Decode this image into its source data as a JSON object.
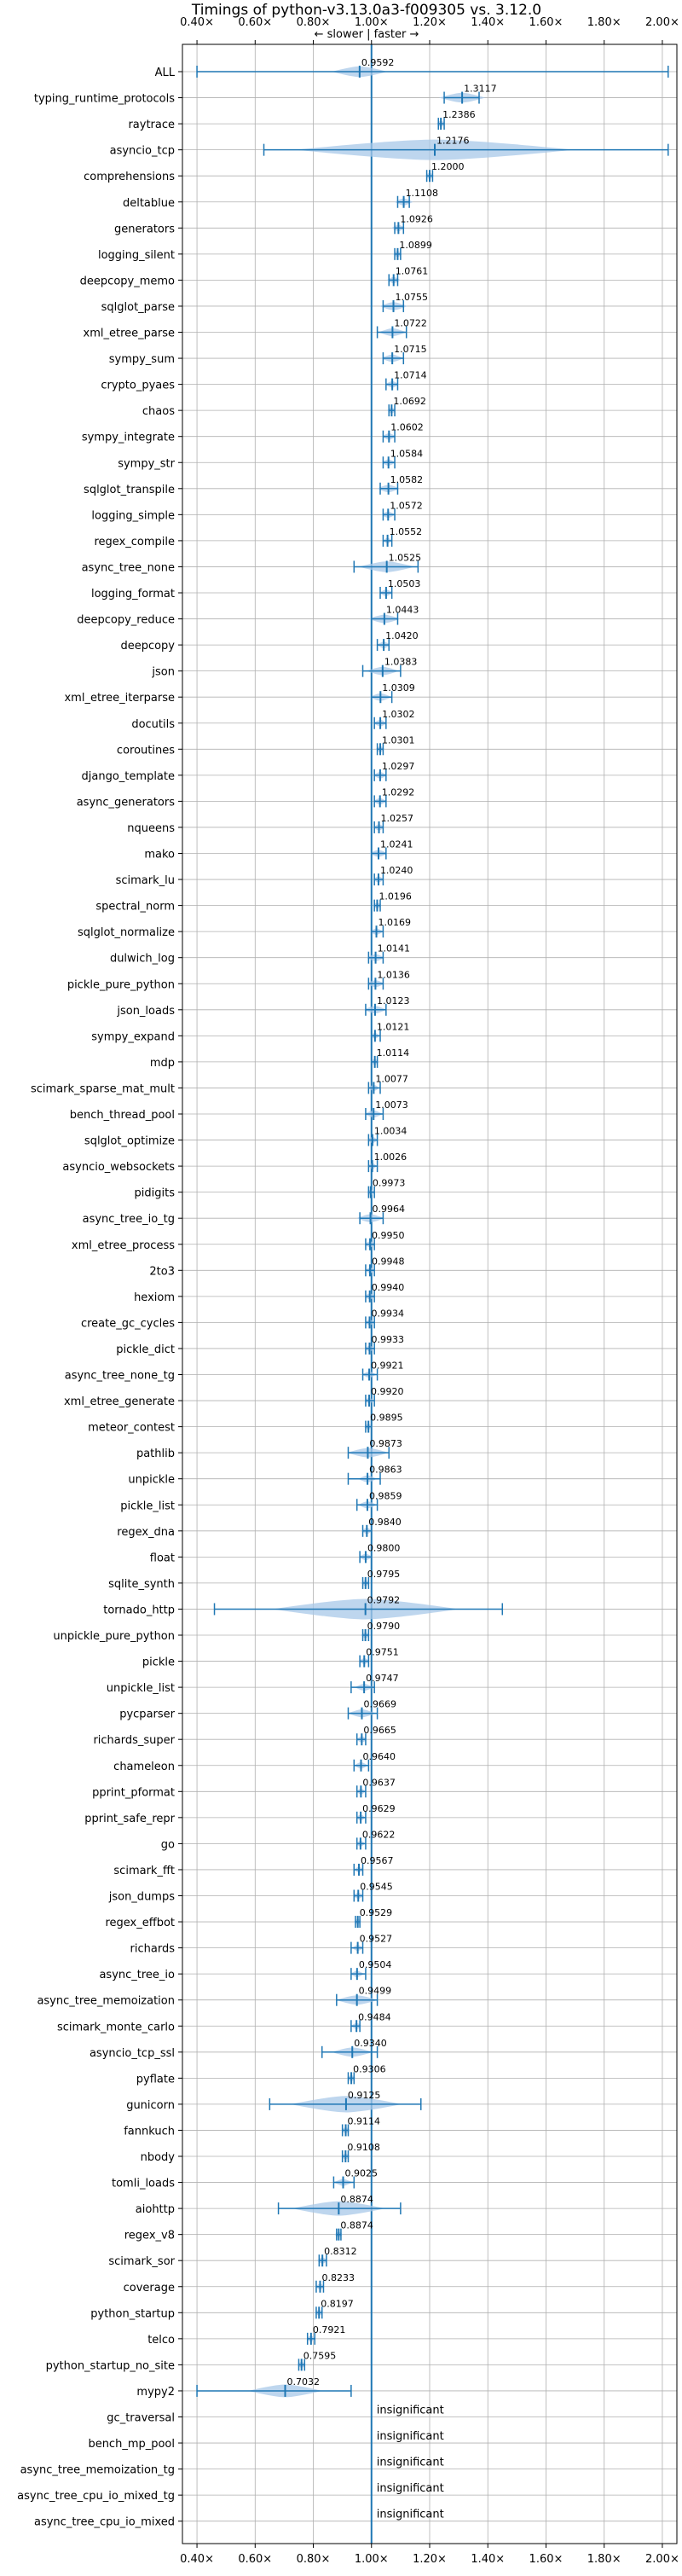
{
  "chart_data": {
    "type": "violin",
    "title": "Timings of python-v3.13.0a3-f009305 vs. 3.12.0",
    "direction_label": "← slower | faster →",
    "x_ticks": [
      "0.40×",
      "0.60×",
      "0.80×",
      "1.00×",
      "1.20×",
      "1.40×",
      "1.60×",
      "1.80×",
      "2.00×"
    ],
    "xlim": [
      0.35,
      2.05
    ],
    "reference_line": 1.0,
    "grid": true,
    "benchmarks": [
      {
        "name": "ALL",
        "value": 0.9592,
        "label": "0.9592",
        "min": 0.4,
        "max": 2.02,
        "spread": 0.06
      },
      {
        "name": "typing_runtime_protocols",
        "value": 1.3117,
        "label": "1.3117",
        "min": 1.25,
        "max": 1.37,
        "spread": 0.05
      },
      {
        "name": "raytrace",
        "value": 1.2386,
        "label": "1.2386",
        "min": 1.23,
        "max": 1.25,
        "spread": 0.01
      },
      {
        "name": "asyncio_tcp",
        "value": 1.2176,
        "label": "1.2176",
        "min": 0.63,
        "max": 2.02,
        "spread": 0.3
      },
      {
        "name": "comprehensions",
        "value": 1.2,
        "label": "1.2000",
        "min": 1.19,
        "max": 1.21,
        "spread": 0.01
      },
      {
        "name": "deltablue",
        "value": 1.1108,
        "label": "1.1108",
        "min": 1.09,
        "max": 1.13,
        "spread": 0.02
      },
      {
        "name": "generators",
        "value": 1.0926,
        "label": "1.0926",
        "min": 1.08,
        "max": 1.11,
        "spread": 0.015
      },
      {
        "name": "logging_silent",
        "value": 1.0899,
        "label": "1.0899",
        "min": 1.08,
        "max": 1.1,
        "spread": 0.01
      },
      {
        "name": "deepcopy_memo",
        "value": 1.0761,
        "label": "1.0761",
        "min": 1.06,
        "max": 1.09,
        "spread": 0.015
      },
      {
        "name": "sqlglot_parse",
        "value": 1.0755,
        "label": "1.0755",
        "min": 1.04,
        "max": 1.11,
        "spread": 0.03
      },
      {
        "name": "xml_etree_parse",
        "value": 1.0722,
        "label": "1.0722",
        "min": 1.02,
        "max": 1.12,
        "spread": 0.03
      },
      {
        "name": "sympy_sum",
        "value": 1.0715,
        "label": "1.0715",
        "min": 1.04,
        "max": 1.11,
        "spread": 0.025
      },
      {
        "name": "crypto_pyaes",
        "value": 1.0714,
        "label": "1.0714",
        "min": 1.05,
        "max": 1.09,
        "spread": 0.015
      },
      {
        "name": "chaos",
        "value": 1.0692,
        "label": "1.0692",
        "min": 1.06,
        "max": 1.08,
        "spread": 0.01
      },
      {
        "name": "sympy_integrate",
        "value": 1.0602,
        "label": "1.0602",
        "min": 1.04,
        "max": 1.08,
        "spread": 0.015
      },
      {
        "name": "sympy_str",
        "value": 1.0584,
        "label": "1.0584",
        "min": 1.04,
        "max": 1.08,
        "spread": 0.015
      },
      {
        "name": "sqlglot_transpile",
        "value": 1.0582,
        "label": "1.0582",
        "min": 1.03,
        "max": 1.09,
        "spread": 0.025
      },
      {
        "name": "logging_simple",
        "value": 1.0572,
        "label": "1.0572",
        "min": 1.04,
        "max": 1.08,
        "spread": 0.015
      },
      {
        "name": "regex_compile",
        "value": 1.0552,
        "label": "1.0552",
        "min": 1.04,
        "max": 1.07,
        "spread": 0.01
      },
      {
        "name": "async_tree_none",
        "value": 1.0525,
        "label": "1.0525",
        "min": 0.94,
        "max": 1.16,
        "spread": 0.06
      },
      {
        "name": "logging_format",
        "value": 1.0503,
        "label": "1.0503",
        "min": 1.03,
        "max": 1.07,
        "spread": 0.015
      },
      {
        "name": "deepcopy_reduce",
        "value": 1.0443,
        "label": "1.0443",
        "min": 1.0,
        "max": 1.09,
        "spread": 0.035
      },
      {
        "name": "deepcopy",
        "value": 1.042,
        "label": "1.0420",
        "min": 1.02,
        "max": 1.06,
        "spread": 0.015
      },
      {
        "name": "json",
        "value": 1.0383,
        "label": "1.0383",
        "min": 0.97,
        "max": 1.1,
        "spread": 0.035
      },
      {
        "name": "xml_etree_iterparse",
        "value": 1.0309,
        "label": "1.0309",
        "min": 1.0,
        "max": 1.07,
        "spread": 0.025
      },
      {
        "name": "docutils",
        "value": 1.0302,
        "label": "1.0302",
        "min": 1.01,
        "max": 1.05,
        "spread": 0.015
      },
      {
        "name": "coroutines",
        "value": 1.0301,
        "label": "1.0301",
        "min": 1.02,
        "max": 1.04,
        "spread": 0.01
      },
      {
        "name": "django_template",
        "value": 1.0297,
        "label": "1.0297",
        "min": 1.01,
        "max": 1.05,
        "spread": 0.015
      },
      {
        "name": "async_generators",
        "value": 1.0292,
        "label": "1.0292",
        "min": 1.01,
        "max": 1.05,
        "spread": 0.015
      },
      {
        "name": "nqueens",
        "value": 1.0257,
        "label": "1.0257",
        "min": 1.01,
        "max": 1.04,
        "spread": 0.012
      },
      {
        "name": "mako",
        "value": 1.0241,
        "label": "1.0241",
        "min": 1.0,
        "max": 1.05,
        "spread": 0.02
      },
      {
        "name": "scimark_lu",
        "value": 1.024,
        "label": "1.0240",
        "min": 1.01,
        "max": 1.04,
        "spread": 0.012
      },
      {
        "name": "spectral_norm",
        "value": 1.0196,
        "label": "1.0196",
        "min": 1.01,
        "max": 1.03,
        "spread": 0.01
      },
      {
        "name": "sqlglot_normalize",
        "value": 1.0169,
        "label": "1.0169",
        "min": 1.0,
        "max": 1.04,
        "spread": 0.015
      },
      {
        "name": "dulwich_log",
        "value": 1.0141,
        "label": "1.0141",
        "min": 0.99,
        "max": 1.04,
        "spread": 0.02
      },
      {
        "name": "pickle_pure_python",
        "value": 1.0136,
        "label": "1.0136",
        "min": 0.99,
        "max": 1.04,
        "spread": 0.02
      },
      {
        "name": "json_loads",
        "value": 1.0123,
        "label": "1.0123",
        "min": 0.98,
        "max": 1.05,
        "spread": 0.025
      },
      {
        "name": "sympy_expand",
        "value": 1.0121,
        "label": "1.0121",
        "min": 1.0,
        "max": 1.03,
        "spread": 0.01
      },
      {
        "name": "mdp",
        "value": 1.0114,
        "label": "1.0114",
        "min": 1.0,
        "max": 1.02,
        "spread": 0.01
      },
      {
        "name": "scimark_sparse_mat_mult",
        "value": 1.0077,
        "label": "1.0077",
        "min": 0.99,
        "max": 1.03,
        "spread": 0.012
      },
      {
        "name": "bench_thread_pool",
        "value": 1.0073,
        "label": "1.0073",
        "min": 0.98,
        "max": 1.04,
        "spread": 0.02
      },
      {
        "name": "sqlglot_optimize",
        "value": 1.0034,
        "label": "1.0034",
        "min": 0.99,
        "max": 1.02,
        "spread": 0.012
      },
      {
        "name": "asyncio_websockets",
        "value": 1.0026,
        "label": "1.0026",
        "min": 0.99,
        "max": 1.02,
        "spread": 0.01
      },
      {
        "name": "pidigits",
        "value": 0.9973,
        "label": "0.9973",
        "min": 0.99,
        "max": 1.01,
        "spread": 0.008
      },
      {
        "name": "async_tree_io_tg",
        "value": 0.9964,
        "label": "0.9964",
        "min": 0.96,
        "max": 1.04,
        "spread": 0.03
      },
      {
        "name": "xml_etree_process",
        "value": 0.995,
        "label": "0.9950",
        "min": 0.98,
        "max": 1.01,
        "spread": 0.012
      },
      {
        "name": "2to3",
        "value": 0.9948,
        "label": "0.9948",
        "min": 0.98,
        "max": 1.01,
        "spread": 0.01
      },
      {
        "name": "hexiom",
        "value": 0.994,
        "label": "0.9940",
        "min": 0.98,
        "max": 1.01,
        "spread": 0.012
      },
      {
        "name": "create_gc_cycles",
        "value": 0.9934,
        "label": "0.9934",
        "min": 0.98,
        "max": 1.01,
        "spread": 0.01
      },
      {
        "name": "pickle_dict",
        "value": 0.9933,
        "label": "0.9933",
        "min": 0.98,
        "max": 1.01,
        "spread": 0.01
      },
      {
        "name": "async_tree_none_tg",
        "value": 0.9921,
        "label": "0.9921",
        "min": 0.97,
        "max": 1.02,
        "spread": 0.015
      },
      {
        "name": "xml_etree_generate",
        "value": 0.992,
        "label": "0.9920",
        "min": 0.98,
        "max": 1.01,
        "spread": 0.01
      },
      {
        "name": "meteor_contest",
        "value": 0.9895,
        "label": "0.9895",
        "min": 0.98,
        "max": 1.0,
        "spread": 0.01
      },
      {
        "name": "pathlib",
        "value": 0.9873,
        "label": "0.9873",
        "min": 0.92,
        "max": 1.06,
        "spread": 0.045
      },
      {
        "name": "unpickle",
        "value": 0.9863,
        "label": "0.9863",
        "min": 0.92,
        "max": 1.03,
        "spread": 0.02
      },
      {
        "name": "pickle_list",
        "value": 0.9859,
        "label": "0.9859",
        "min": 0.95,
        "max": 1.02,
        "spread": 0.02
      },
      {
        "name": "regex_dna",
        "value": 0.984,
        "label": "0.9840",
        "min": 0.97,
        "max": 1.0,
        "spread": 0.012
      },
      {
        "name": "float",
        "value": 0.98,
        "label": "0.9800",
        "min": 0.96,
        "max": 1.0,
        "spread": 0.015
      },
      {
        "name": "sqlite_synth",
        "value": 0.9795,
        "label": "0.9795",
        "min": 0.97,
        "max": 0.99,
        "spread": 0.01
      },
      {
        "name": "tornado_http",
        "value": 0.9792,
        "label": "0.9792",
        "min": 0.46,
        "max": 1.45,
        "spread": 0.2
      },
      {
        "name": "unpickle_pure_python",
        "value": 0.979,
        "label": "0.9790",
        "min": 0.97,
        "max": 0.99,
        "spread": 0.01
      },
      {
        "name": "pickle",
        "value": 0.9751,
        "label": "0.9751",
        "min": 0.96,
        "max": 0.99,
        "spread": 0.012
      },
      {
        "name": "unpickle_list",
        "value": 0.9747,
        "label": "0.9747",
        "min": 0.93,
        "max": 1.01,
        "spread": 0.02
      },
      {
        "name": "pycparser",
        "value": 0.9669,
        "label": "0.9669",
        "min": 0.92,
        "max": 1.02,
        "spread": 0.03
      },
      {
        "name": "richards_super",
        "value": 0.9665,
        "label": "0.9665",
        "min": 0.95,
        "max": 0.98,
        "spread": 0.012
      },
      {
        "name": "chameleon",
        "value": 0.964,
        "label": "0.9640",
        "min": 0.94,
        "max": 0.99,
        "spread": 0.015
      },
      {
        "name": "pprint_pformat",
        "value": 0.9637,
        "label": "0.9637",
        "min": 0.95,
        "max": 0.98,
        "spread": 0.01
      },
      {
        "name": "pprint_safe_repr",
        "value": 0.9629,
        "label": "0.9629",
        "min": 0.95,
        "max": 0.98,
        "spread": 0.01
      },
      {
        "name": "go",
        "value": 0.9622,
        "label": "0.9622",
        "min": 0.95,
        "max": 0.98,
        "spread": 0.01
      },
      {
        "name": "scimark_fft",
        "value": 0.9567,
        "label": "0.9567",
        "min": 0.94,
        "max": 0.97,
        "spread": 0.01
      },
      {
        "name": "json_dumps",
        "value": 0.9545,
        "label": "0.9545",
        "min": 0.94,
        "max": 0.97,
        "spread": 0.012
      },
      {
        "name": "regex_effbot",
        "value": 0.9529,
        "label": "0.9529",
        "min": 0.945,
        "max": 0.96,
        "spread": 0.008
      },
      {
        "name": "richards",
        "value": 0.9527,
        "label": "0.9527",
        "min": 0.93,
        "max": 0.97,
        "spread": 0.012
      },
      {
        "name": "async_tree_io",
        "value": 0.9504,
        "label": "0.9504",
        "min": 0.93,
        "max": 0.98,
        "spread": 0.015
      },
      {
        "name": "async_tree_memoization",
        "value": 0.9499,
        "label": "0.9499",
        "min": 0.88,
        "max": 1.02,
        "spread": 0.045
      },
      {
        "name": "scimark_monte_carlo",
        "value": 0.9484,
        "label": "0.9484",
        "min": 0.93,
        "max": 0.96,
        "spread": 0.012
      },
      {
        "name": "asyncio_tcp_ssl",
        "value": 0.934,
        "label": "0.9340",
        "min": 0.83,
        "max": 1.02,
        "spread": 0.045
      },
      {
        "name": "pyflate",
        "value": 0.9306,
        "label": "0.9306",
        "min": 0.92,
        "max": 0.94,
        "spread": 0.01
      },
      {
        "name": "gunicorn",
        "value": 0.9125,
        "label": "0.9125",
        "min": 0.65,
        "max": 1.17,
        "spread": 0.12
      },
      {
        "name": "fannkuch",
        "value": 0.9114,
        "label": "0.9114",
        "min": 0.9,
        "max": 0.92,
        "spread": 0.01
      },
      {
        "name": "nbody",
        "value": 0.9108,
        "label": "0.9108",
        "min": 0.9,
        "max": 0.92,
        "spread": 0.01
      },
      {
        "name": "tomli_loads",
        "value": 0.9025,
        "label": "0.9025",
        "min": 0.87,
        "max": 0.94,
        "spread": 0.02
      },
      {
        "name": "aiohttp",
        "value": 0.8874,
        "label": "0.8874",
        "min": 0.68,
        "max": 1.1,
        "spread": 0.1
      },
      {
        "name": "regex_v8",
        "value": 0.8874,
        "label": "0.8874",
        "min": 0.88,
        "max": 0.895,
        "spread": 0.008
      },
      {
        "name": "scimark_sor",
        "value": 0.8312,
        "label": "0.8312",
        "min": 0.82,
        "max": 0.845,
        "spread": 0.012
      },
      {
        "name": "coverage",
        "value": 0.8233,
        "label": "0.8233",
        "min": 0.81,
        "max": 0.835,
        "spread": 0.01
      },
      {
        "name": "python_startup",
        "value": 0.8197,
        "label": "0.8197",
        "min": 0.81,
        "max": 0.83,
        "spread": 0.01
      },
      {
        "name": "telco",
        "value": 0.7921,
        "label": "0.7921",
        "min": 0.78,
        "max": 0.805,
        "spread": 0.01
      },
      {
        "name": "python_startup_no_site",
        "value": 0.7595,
        "label": "0.7595",
        "min": 0.75,
        "max": 0.77,
        "spread": 0.01
      },
      {
        "name": "mypy2",
        "value": 0.7032,
        "label": "0.7032",
        "min": 0.4,
        "max": 0.93,
        "spread": 0.08
      },
      {
        "name": "gc_traversal",
        "value": null,
        "label": "insignificant"
      },
      {
        "name": "bench_mp_pool",
        "value": null,
        "label": "insignificant"
      },
      {
        "name": "async_tree_memoization_tg",
        "value": null,
        "label": "insignificant"
      },
      {
        "name": "async_tree_cpu_io_mixed_tg",
        "value": null,
        "label": "insignificant"
      },
      {
        "name": "async_tree_cpu_io_mixed",
        "value": null,
        "label": "insignificant"
      }
    ],
    "colors": {
      "violin": "#a8c8e8",
      "line": "#1f77b4",
      "median": "#e06666",
      "grid": "#b0b0b0",
      "reference": "#1f77b4"
    }
  }
}
